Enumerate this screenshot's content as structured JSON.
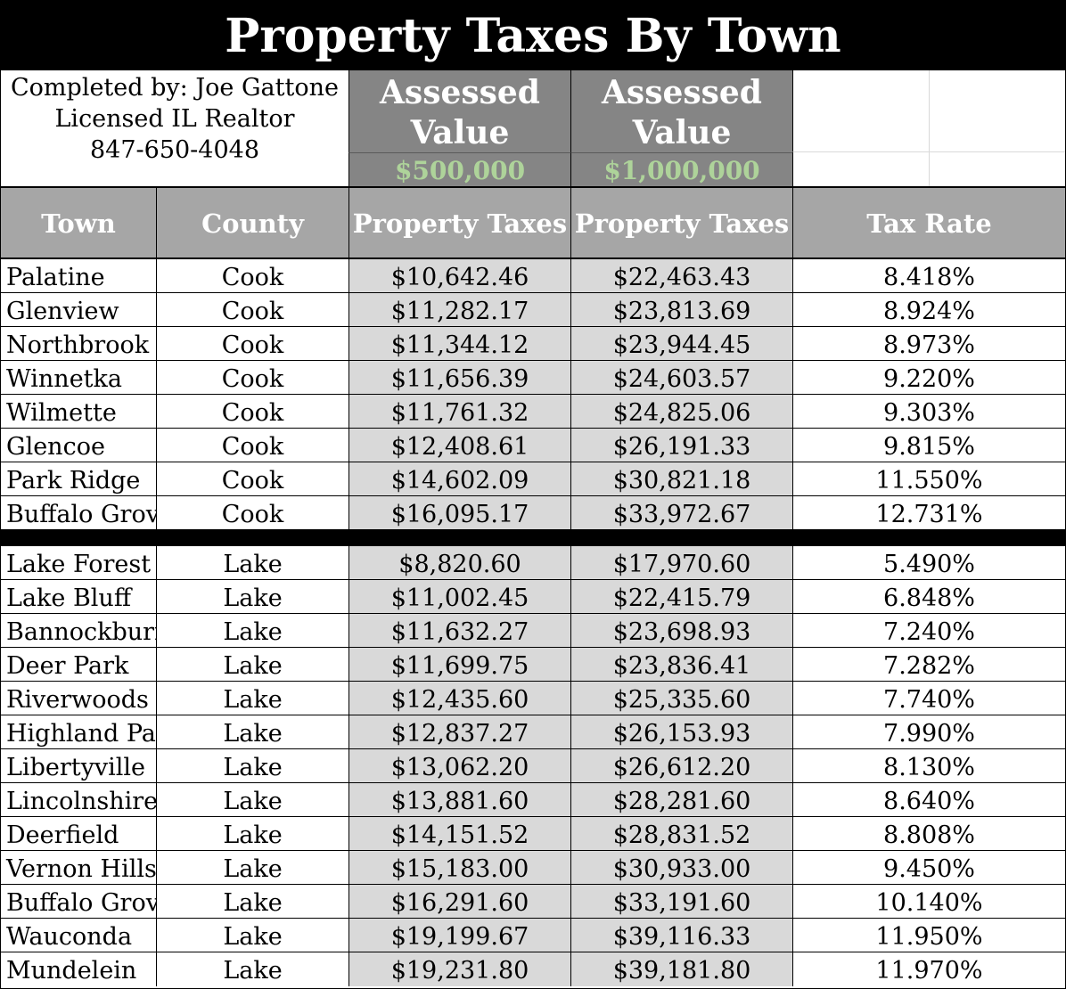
{
  "title": "Property Taxes By Town",
  "info": {
    "line1": "Completed by: Joe Gattone",
    "line2": "Licensed IL Realtor",
    "line3": "847-650-4048"
  },
  "assessed": [
    {
      "label_line1": "Assessed",
      "label_line2": "Value",
      "amount": "$500,000"
    },
    {
      "label_line1": "Assessed",
      "label_line2": "Value",
      "amount": "$1,000,000"
    }
  ],
  "headers": {
    "town": "Town",
    "county": "County",
    "tax_500k": "Property Taxes",
    "tax_1m": "Property Taxes",
    "rate": "Tax Rate"
  },
  "cook_rows": [
    [
      "Palatine",
      "Cook",
      "$10,642.46",
      "$22,463.43",
      "8.418%"
    ],
    [
      "Glenview",
      "Cook",
      "$11,282.17",
      "$23,813.69",
      "8.924%"
    ],
    [
      "Northbrook",
      "Cook",
      "$11,344.12",
      "$23,944.45",
      "8.973%"
    ],
    [
      "Winnetka",
      "Cook",
      "$11,656.39",
      "$24,603.57",
      "9.220%"
    ],
    [
      "Wilmette",
      "Cook",
      "$11,761.32",
      "$24,825.06",
      "9.303%"
    ],
    [
      "Glencoe",
      "Cook",
      "$12,408.61",
      "$26,191.33",
      "9.815%"
    ],
    [
      "Park Ridge",
      "Cook",
      "$14,602.09",
      "$30,821.18",
      "11.550%"
    ],
    [
      "Buffalo Grove",
      "Cook",
      "$16,095.17",
      "$33,972.67",
      "12.731%"
    ]
  ],
  "lake_rows": [
    [
      "Lake Forest",
      "Lake",
      "$8,820.60",
      "$17,970.60",
      "5.490%"
    ],
    [
      "Lake Bluff",
      "Lake",
      "$11,002.45",
      "$22,415.79",
      "6.848%"
    ],
    [
      "Bannockburn",
      "Lake",
      "$11,632.27",
      "$23,698.93",
      "7.240%"
    ],
    [
      "Deer Park",
      "Lake",
      "$11,699.75",
      "$23,836.41",
      "7.282%"
    ],
    [
      "Riverwoods",
      "Lake",
      "$12,435.60",
      "$25,335.60",
      "7.740%"
    ],
    [
      "Highland Park",
      "Lake",
      "$12,837.27",
      "$26,153.93",
      "7.990%"
    ],
    [
      "Libertyville",
      "Lake",
      "$13,062.20",
      "$26,612.20",
      "8.130%"
    ],
    [
      "Lincolnshire",
      "Lake",
      "$13,881.60",
      "$28,281.60",
      "8.640%"
    ],
    [
      "Deerfield",
      "Lake",
      "$14,151.52",
      "$28,831.52",
      "8.808%"
    ],
    [
      "Vernon Hills",
      "Lake",
      "$15,183.00",
      "$30,933.00",
      "9.450%"
    ],
    [
      "Buffalo Grove",
      "Lake",
      "$16,291.60",
      "$33,191.60",
      "10.140%"
    ],
    [
      "Wauconda",
      "Lake",
      "$19,199.67",
      "$39,116.33",
      "11.950%"
    ],
    [
      "Mundelein",
      "Lake",
      "$19,231.80",
      "$39,181.80",
      "11.970%"
    ]
  ]
}
